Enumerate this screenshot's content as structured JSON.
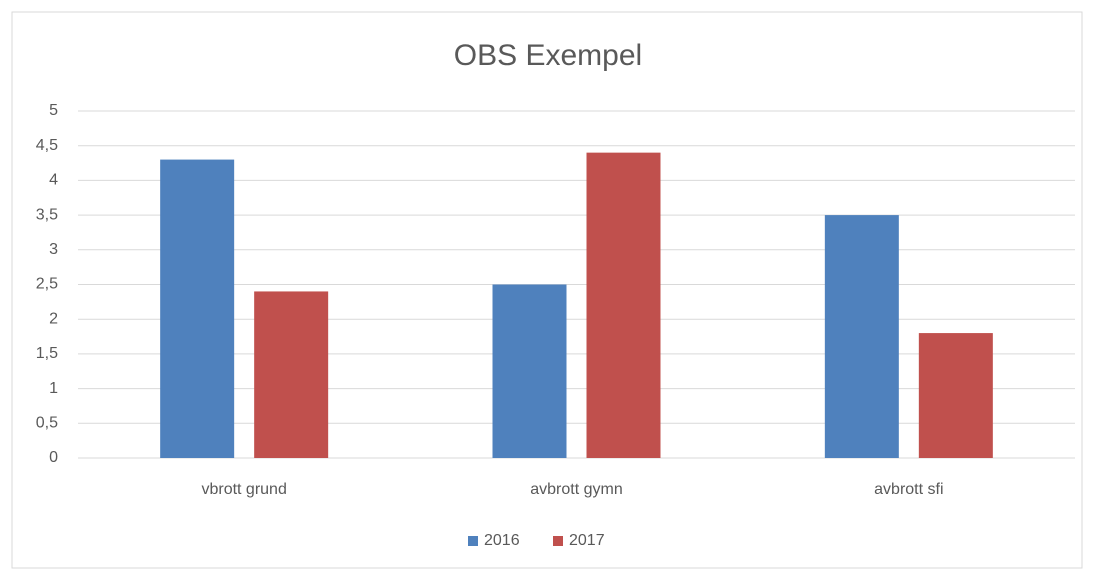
{
  "chart_data": {
    "type": "bar",
    "title": "OBS Exempel",
    "categories": [
      "vbrott grund",
      "avbrott gymn",
      "avbrott sfi"
    ],
    "series": [
      {
        "name": "2016",
        "color": "#4f81bd",
        "values": [
          4.3,
          2.5,
          3.5
        ]
      },
      {
        "name": "2017",
        "color": "#c0504d",
        "values": [
          2.4,
          4.4,
          1.8
        ]
      }
    ],
    "ylim": [
      0,
      5
    ],
    "yticks": [
      0,
      {
        "value": 0.5,
        "label": "0,5"
      },
      1,
      {
        "value": 1.5,
        "label": "1,5"
      },
      2,
      {
        "value": 2.5,
        "label": "2,5"
      },
      3,
      {
        "value": 3.5,
        "label": "3,5"
      },
      4,
      {
        "value": 4.5,
        "label": "4,5"
      },
      5
    ],
    "grid": true,
    "legend": "bottom"
  }
}
